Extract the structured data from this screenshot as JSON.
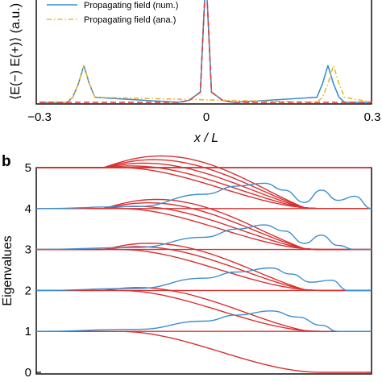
{
  "panel_b_label": "b",
  "chart_data": [
    {
      "type": "line",
      "panel": "a (cropped)",
      "xlabel": "x / L",
      "ylabel": "⟨E(−) E(+)⟩ (a.u.)",
      "xlim": [
        -0.3,
        0.3
      ],
      "ylim": [
        0,
        1
      ],
      "x_ticks": [
        "−0.3",
        "0",
        "0.3"
      ],
      "legend": {
        "placement": "top-left"
      },
      "series": [
        {
          "name": "Propagating field (num.)",
          "color": "#3c8fd0",
          "style": "solid",
          "x": [
            -0.3,
            -0.25,
            -0.24,
            -0.23,
            -0.22,
            -0.21,
            -0.2,
            -0.05,
            -0.03,
            -0.02,
            -0.01,
            -0.005,
            0,
            0.005,
            0.01,
            0.02,
            0.03,
            0.05,
            0.2,
            0.21,
            0.22,
            0.23,
            0.24,
            0.25,
            0.3
          ],
          "y": [
            0.0,
            0.0,
            0.05,
            0.18,
            0.36,
            0.18,
            0.05,
            0.0,
            0.02,
            0.06,
            0.1,
            0.7,
            1.25,
            0.7,
            0.1,
            0.06,
            0.02,
            0.0,
            0.05,
            0.18,
            0.36,
            0.18,
            0.05,
            0.0,
            0.0
          ]
        },
        {
          "name": "Propagating field (ana.)",
          "color": "#e8b828",
          "style": "dashdot",
          "x": [
            -0.3,
            -0.25,
            -0.24,
            -0.23,
            -0.22,
            -0.21,
            -0.2,
            0.2,
            0.21,
            0.22,
            0.23,
            0.24,
            0.25,
            0.3
          ],
          "y": [
            0.0,
            0.0,
            0.05,
            0.18,
            0.36,
            0.18,
            0.05,
            0.0,
            0.05,
            0.18,
            0.36,
            0.18,
            0.05,
            0.0
          ]
        },
        {
          "name": "",
          "color": "#e03a3a",
          "style": "dashed",
          "x": [
            -0.3,
            -0.05,
            -0.03,
            -0.02,
            -0.01,
            -0.005,
            0,
            0.005,
            0.01,
            0.02,
            0.03,
            0.05,
            0.3
          ],
          "y": [
            0.0,
            0.0,
            0.02,
            0.06,
            0.1,
            0.7,
            1.25,
            0.7,
            0.1,
            0.06,
            0.02,
            0.0,
            0.0
          ]
        }
      ]
    },
    {
      "type": "line",
      "panel": "b",
      "ylabel": "Eigenvalues",
      "xlabel": "",
      "xlim": [
        0,
        1
      ],
      "ylim": [
        0,
        5
      ],
      "y_ticks": [
        "0",
        "1",
        "2",
        "3",
        "4",
        "5"
      ],
      "series_colors": {
        "red": "#d93030",
        "blue": "#3c8fd0"
      },
      "red_end_values": [
        [
          1.0,
          0.0
        ],
        [
          2.0,
          1.0,
          1.0
        ],
        [
          3.0,
          2.0,
          2.0,
          2.0
        ],
        [
          4.0,
          3.0,
          3.0,
          3.0,
          3.0
        ],
        [
          5.0,
          4.0,
          4.0,
          4.0,
          4.0,
          4.0
        ]
      ],
      "red_peak_offsets": [
        [
          0.0,
          0.0
        ],
        [
          0.0,
          0.18,
          0.0
        ],
        [
          0.0,
          0.32,
          0.18,
          0.0
        ],
        [
          0.0,
          0.42,
          0.3,
          0.15,
          0.0
        ],
        [
          0.0,
          0.5,
          0.38,
          0.25,
          0.12,
          0.0
        ]
      ],
      "blue_curves": [
        {
          "level": 1,
          "x": [
            0,
            0.3,
            0.5,
            0.6,
            0.7,
            0.78,
            0.85,
            0.9,
            0.95,
            1.0
          ],
          "y": [
            1.0,
            1.05,
            1.25,
            1.4,
            1.5,
            1.35,
            1.15,
            1.0,
            1.0,
            1.0
          ]
        },
        {
          "level": 2,
          "x": [
            0,
            0.3,
            0.5,
            0.6,
            0.7,
            0.76,
            0.82,
            0.88,
            0.93,
            1.0
          ],
          "y": [
            2.0,
            2.05,
            2.3,
            2.45,
            2.55,
            2.4,
            2.2,
            2.25,
            2.0,
            2.0
          ]
        },
        {
          "level": 3,
          "x": [
            0,
            0.3,
            0.5,
            0.6,
            0.68,
            0.74,
            0.8,
            0.85,
            0.9,
            0.95,
            1.0
          ],
          "y": [
            3.0,
            3.05,
            3.3,
            3.5,
            3.6,
            3.45,
            3.15,
            3.35,
            3.1,
            3.0,
            3.0
          ]
        },
        {
          "level": 4,
          "x": [
            0,
            0.3,
            0.5,
            0.6,
            0.68,
            0.74,
            0.8,
            0.85,
            0.9,
            0.95,
            1.0
          ],
          "y": [
            4.0,
            4.05,
            4.35,
            4.55,
            4.62,
            4.45,
            4.15,
            4.45,
            4.2,
            4.3,
            4.0
          ]
        }
      ]
    }
  ]
}
